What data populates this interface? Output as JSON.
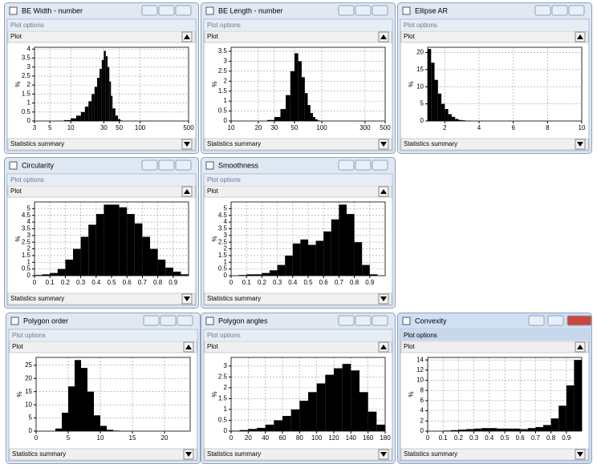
{
  "windows": [
    {
      "title": "BE Width - number",
      "options": "Plot options",
      "plot": "Plot",
      "summary": "Statistics summary"
    },
    {
      "title": "BE Length - number",
      "options": "Plot options",
      "plot": "Plot",
      "summary": "Statistics summary"
    },
    {
      "title": "Ellipse AR",
      "options": "Plot options",
      "plot": "Plot",
      "summary": "Statistics summary"
    },
    {
      "title": "Circularity",
      "options": "Plot options",
      "plot": "Plot",
      "summary": "Statistics summary"
    },
    {
      "title": "Smoothness",
      "options": "Plot options",
      "plot": "Plot",
      "summary": "Statistics summary"
    },
    {
      "title": "Polygon order",
      "options": "Plot options",
      "plot": "Plot",
      "summary": "Statistics summary"
    },
    {
      "title": "Polygon angles",
      "options": "Plot options",
      "plot": "Plot",
      "summary": "Statistics summary"
    },
    {
      "title": "Convexity",
      "options": "Plot options",
      "plot": "Plot",
      "summary": "Statistics summary"
    }
  ],
  "chart_data": [
    {
      "type": "histogram",
      "ylabel": "%",
      "color": "#000000",
      "grid": true,
      "log_x": true,
      "bins": [
        8,
        10,
        12,
        14,
        16,
        18,
        20,
        22,
        24,
        26,
        28,
        30,
        32,
        34,
        36,
        38,
        40,
        44,
        48,
        52,
        56
      ],
      "values": [
        0.05,
        0.15,
        0.3,
        0.5,
        0.8,
        1.1,
        1.5,
        1.9,
        2.4,
        2.9,
        3.4,
        3.9,
        3.6,
        3.0,
        2.2,
        1.4,
        0.7,
        0.3,
        0.1,
        0.03
      ],
      "xlim": [
        3,
        500
      ],
      "xticks": [
        3,
        5,
        10,
        30,
        50,
        100,
        500
      ],
      "ylim": [
        0,
        4.1
      ],
      "yticks": [
        0,
        0.5,
        1,
        1.5,
        2,
        2.5,
        3,
        3.5,
        4
      ]
    },
    {
      "type": "histogram",
      "ylabel": "%",
      "color": "#000000",
      "grid": true,
      "log_x": true,
      "bins": [
        25,
        30,
        35,
        40,
        45,
        50,
        55,
        60,
        65,
        70,
        75,
        80,
        85,
        90,
        95
      ],
      "values": [
        0.05,
        0.2,
        0.6,
        1.3,
        2.5,
        3.4,
        3.0,
        2.2,
        1.4,
        0.8,
        0.4,
        0.2,
        0.08,
        0.03
      ],
      "xlim": [
        10,
        500
      ],
      "xticks": [
        10,
        20,
        30,
        50,
        100,
        300,
        500
      ],
      "ylim": [
        0,
        3.7
      ],
      "yticks": [
        0,
        0.5,
        1,
        1.5,
        2,
        2.5,
        3,
        3.5
      ]
    },
    {
      "type": "histogram",
      "ylabel": "%",
      "color": "#000000",
      "grid": true,
      "log_x": false,
      "bins": [
        1,
        1.2,
        1.4,
        1.6,
        1.8,
        2,
        2.2,
        2.4,
        2.6,
        2.8,
        3,
        3.2,
        3.4,
        3.6
      ],
      "values": [
        21,
        17,
        12,
        8,
        5,
        3.5,
        2,
        1.2,
        0.6,
        0.3,
        0.2,
        0.1,
        0.05
      ],
      "xlim": [
        1,
        10
      ],
      "xticks": [
        2,
        4,
        6,
        8,
        10
      ],
      "ylim": [
        0,
        21.5
      ],
      "yticks": [
        0,
        5,
        10,
        15,
        20
      ]
    },
    {
      "type": "histogram",
      "ylabel": "%",
      "color": "#000000",
      "grid": true,
      "log_x": false,
      "bins": [
        0,
        0.05,
        0.1,
        0.15,
        0.2,
        0.25,
        0.3,
        0.35,
        0.4,
        0.45,
        0.5,
        0.55,
        0.6,
        0.65,
        0.7,
        0.75,
        0.8,
        0.85,
        0.9,
        0.95,
        1
      ],
      "values": [
        0.05,
        0.1,
        0.2,
        0.5,
        1.2,
        2.0,
        2.9,
        3.8,
        4.6,
        5.3,
        5.3,
        5.1,
        4.6,
        3.9,
        2.9,
        2.0,
        1.2,
        0.6,
        0.3,
        0.1
      ],
      "xlim": [
        0,
        1
      ],
      "xticks": [
        0,
        0.1,
        0.2,
        0.3,
        0.4,
        0.5,
        0.6,
        0.7,
        0.8,
        0.9
      ],
      "ylim": [
        0,
        5.5
      ],
      "yticks": [
        0,
        0.5,
        1,
        1.5,
        2,
        2.5,
        3,
        3.5,
        4,
        4.5,
        5
      ]
    },
    {
      "type": "histogram",
      "ylabel": "%",
      "color": "#000000",
      "grid": true,
      "log_x": false,
      "bins": [
        0,
        0.05,
        0.1,
        0.15,
        0.2,
        0.25,
        0.3,
        0.35,
        0.4,
        0.45,
        0.5,
        0.55,
        0.6,
        0.65,
        0.7,
        0.75,
        0.8,
        0.85,
        0.9,
        0.95,
        1
      ],
      "values": [
        0,
        0.05,
        0.1,
        0.1,
        0.2,
        0.4,
        0.8,
        1.5,
        2.4,
        2.7,
        2.3,
        2.6,
        3.3,
        4.2,
        5.3,
        4.6,
        2.5,
        0.8,
        0.1,
        0
      ],
      "xlim": [
        0,
        1
      ],
      "xticks": [
        0,
        0.1,
        0.2,
        0.3,
        0.4,
        0.5,
        0.6,
        0.7,
        0.8,
        0.9
      ],
      "ylim": [
        0,
        5.5
      ],
      "yticks": [
        0,
        0.5,
        1,
        1.5,
        2,
        2.5,
        3,
        3.5,
        4,
        4.5,
        5
      ]
    },
    {
      "type": "histogram",
      "ylabel": "%",
      "color": "#000000",
      "grid": true,
      "log_x": false,
      "bins": [
        3,
        4,
        5,
        6,
        7,
        8,
        9,
        10,
        11,
        12,
        13,
        14
      ],
      "values": [
        1,
        7,
        17,
        27,
        24,
        15,
        6,
        2,
        0.5,
        0.2,
        0.05
      ],
      "xlim": [
        0,
        24
      ],
      "xticks": [
        0,
        5,
        10,
        15,
        20
      ],
      "ylim": [
        0,
        28
      ],
      "yticks": [
        0,
        5,
        10,
        15,
        20,
        25
      ]
    },
    {
      "type": "histogram",
      "ylabel": "%",
      "color": "#000000",
      "grid": true,
      "log_x": false,
      "bins": [
        0,
        10,
        20,
        30,
        40,
        50,
        60,
        70,
        80,
        90,
        100,
        110,
        120,
        130,
        140,
        150,
        160,
        170,
        180
      ],
      "values": [
        0.02,
        0.05,
        0.1,
        0.15,
        0.3,
        0.5,
        0.7,
        1.0,
        1.4,
        1.8,
        2.2,
        2.6,
        2.9,
        3.1,
        2.8,
        1.8,
        0.9,
        0.3
      ],
      "xlim": [
        0,
        180
      ],
      "xticks": [
        0,
        20,
        40,
        60,
        80,
        100,
        120,
        140,
        160,
        180
      ],
      "ylim": [
        0,
        3.4
      ],
      "yticks": [
        0,
        0.5,
        1,
        1.5,
        2,
        2.5,
        3
      ]
    },
    {
      "type": "histogram",
      "ylabel": "%",
      "color": "#000000",
      "grid": true,
      "log_x": false,
      "bins": [
        0,
        0.05,
        0.1,
        0.15,
        0.2,
        0.25,
        0.3,
        0.35,
        0.4,
        0.45,
        0.5,
        0.55,
        0.6,
        0.65,
        0.7,
        0.75,
        0.8,
        0.85,
        0.9,
        0.95,
        1
      ],
      "values": [
        0,
        0,
        0.1,
        0.2,
        0.3,
        0.4,
        0.5,
        0.6,
        0.6,
        0.5,
        0.5,
        0.5,
        0.4,
        0.6,
        0.8,
        1.2,
        2.5,
        5,
        9,
        14
      ],
      "xlim": [
        0,
        1
      ],
      "xticks": [
        0,
        0.1,
        0.2,
        0.3,
        0.4,
        0.5,
        0.6,
        0.7,
        0.8,
        0.9
      ],
      "ylim": [
        0,
        14.5
      ],
      "yticks": [
        0,
        2,
        4,
        6,
        8,
        10,
        12,
        14
      ]
    }
  ]
}
